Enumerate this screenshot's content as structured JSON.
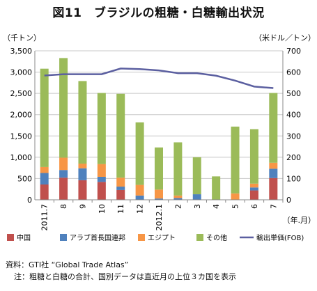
{
  "title": "図11　ブラジルの粗糖・白糖輸出状況",
  "chart_data": {
    "type": "bar",
    "stacked": true,
    "y_left_unit": "（千トン）",
    "y_right_unit": "（米ドル／トン）",
    "x_unit": "（年.月）",
    "ylim_left": [
      0,
      3500
    ],
    "ylim_right": [
      0,
      700
    ],
    "yticks_left": [
      "0",
      "500",
      "1,000",
      "1,500",
      "2,000",
      "2,500",
      "3,000",
      "3,500"
    ],
    "yticks_right": [
      "0",
      "100",
      "200",
      "300",
      "400",
      "500",
      "600",
      "700"
    ],
    "categories": [
      "2011.7",
      "8",
      "9",
      "10",
      "11",
      "12",
      "2012.1",
      "2",
      "3",
      "4",
      "5",
      "6",
      "7"
    ],
    "series": [
      {
        "name": "中国",
        "color": "#c0504d",
        "values": [
          360,
          520,
          460,
          420,
          230,
          0,
          0,
          0,
          0,
          0,
          0,
          220,
          510
        ]
      },
      {
        "name": "アラブ首長国連邦",
        "color": "#4f81bd",
        "values": [
          270,
          180,
          280,
          120,
          80,
          100,
          30,
          40,
          130,
          0,
          0,
          70,
          220
        ]
      },
      {
        "name": "エジプト",
        "color": "#f79646",
        "values": [
          140,
          290,
          110,
          300,
          210,
          250,
          210,
          60,
          0,
          0,
          150,
          90,
          140
        ]
      },
      {
        "name": "その他",
        "color": "#9bbb59",
        "values": [
          2310,
          2340,
          1940,
          1670,
          1970,
          1470,
          990,
          1250,
          870,
          550,
          1570,
          1280,
          1640
        ]
      }
    ],
    "line": {
      "name": "輸出単価(FOB)",
      "color": "#5b5fa0",
      "values": [
        584,
        590,
        590,
        590,
        617,
        614,
        608,
        595,
        595,
        583,
        560,
        532,
        525
      ]
    },
    "grid": true,
    "legend_position": "bottom"
  },
  "notes": {
    "source": "資料：GTI社 “Global Trade Atlas”",
    "note": "注：粗糖と白糖の合計、国別データは直近月の上位３カ国を表示"
  }
}
